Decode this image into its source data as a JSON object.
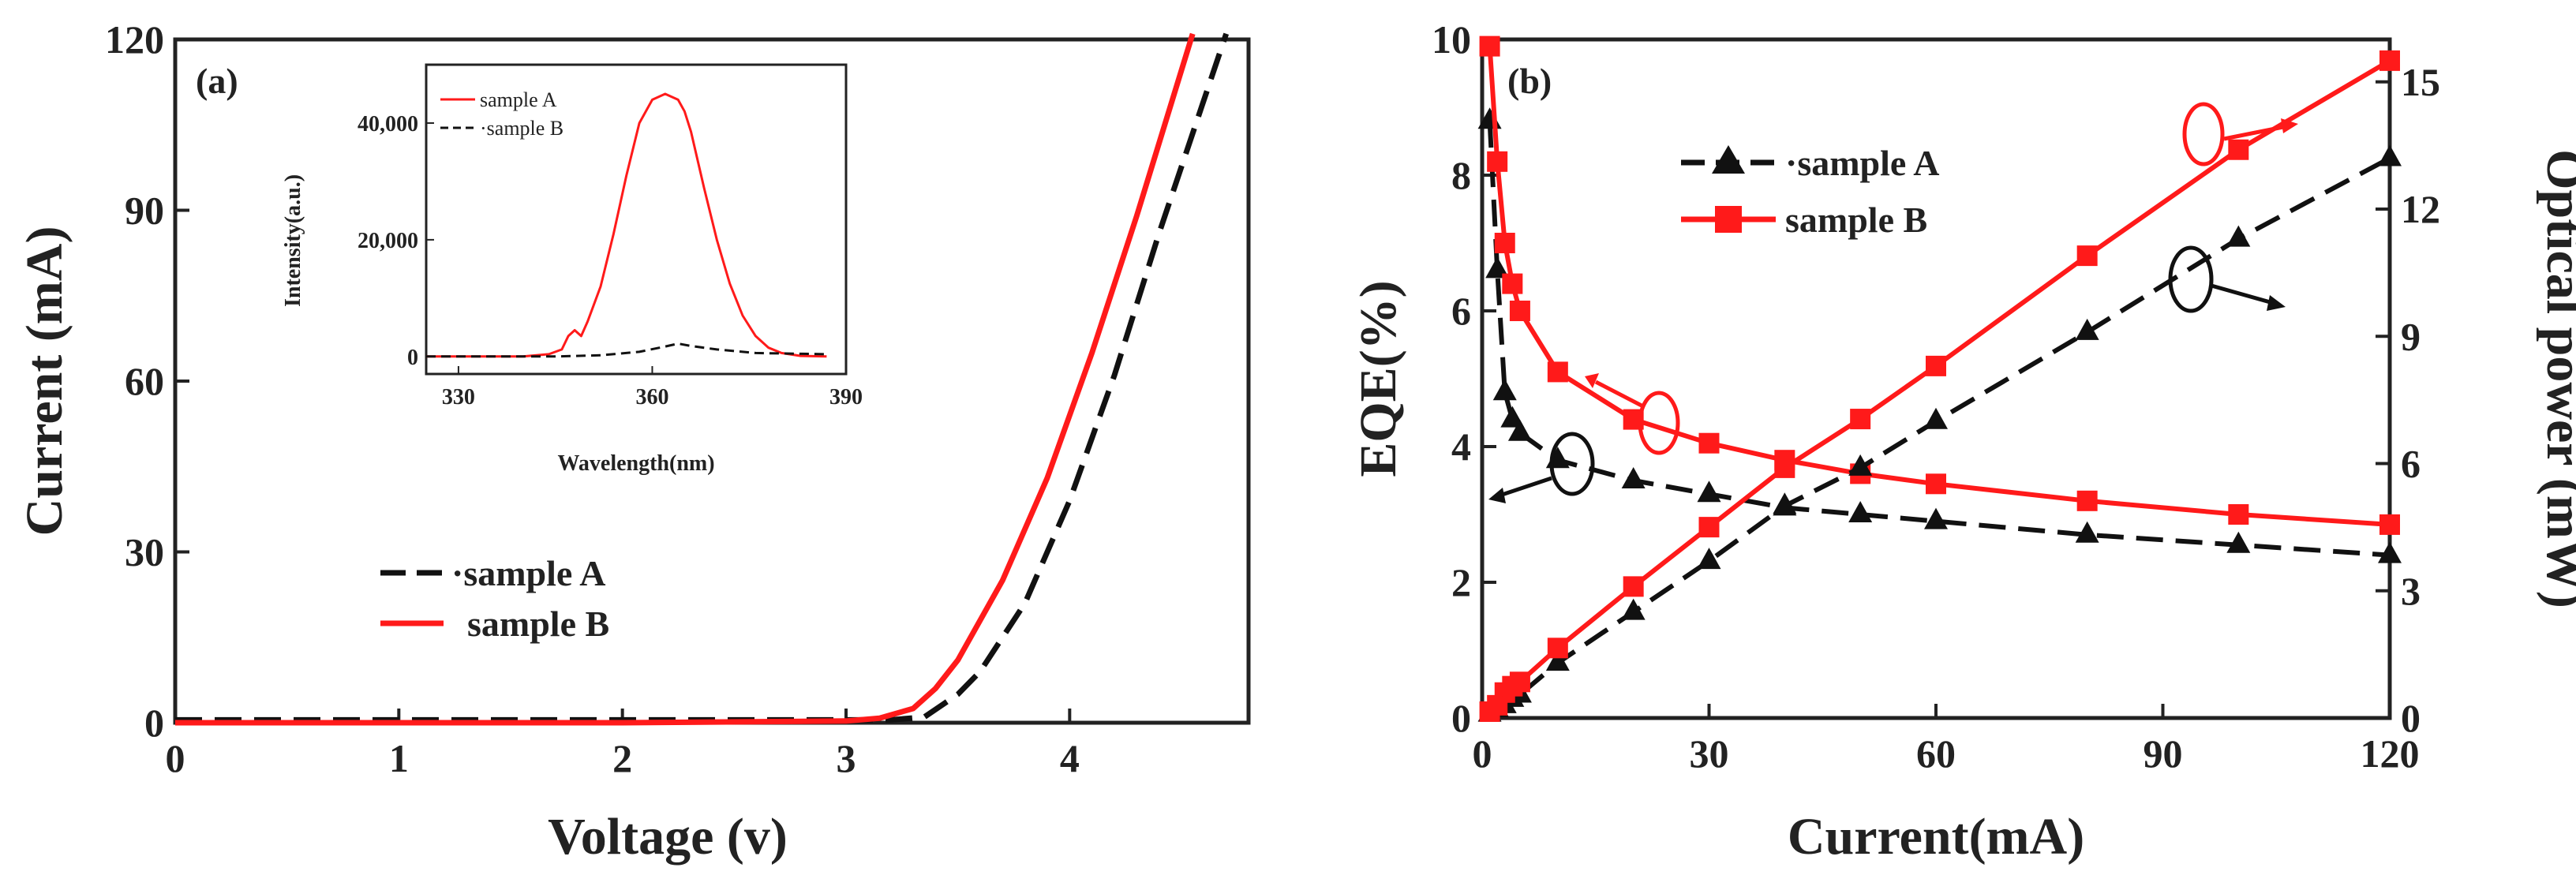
{
  "colors": {
    "sampleA": "#111111",
    "sampleB": "#ff1a1a",
    "axis": "#222222"
  },
  "chart_data": [
    {
      "panel": "(a)",
      "type": "line",
      "xlabel": "Voltage (v)",
      "ylabel": "Current (mA)",
      "xlim": [
        0,
        4.8
      ],
      "ylim": [
        0,
        120
      ],
      "xticks": [
        "0",
        "1",
        "2",
        "3",
        "4"
      ],
      "yticks": [
        "0",
        "30",
        "60",
        "90",
        "120"
      ],
      "legend_position": "lower-left",
      "series": [
        {
          "name": "sample A",
          "legend_label": "·sample A",
          "style": "dashed",
          "x": [
            0,
            1,
            2,
            3,
            3.2,
            3.35,
            3.5,
            3.6,
            3.8,
            4.0,
            4.2,
            4.4,
            4.7
          ],
          "y": [
            0.5,
            0.5,
            0.5,
            0.5,
            0.5,
            1,
            5,
            9,
            21,
            39,
            61,
            86,
            121
          ]
        },
        {
          "name": "sample B",
          "legend_label": "sample B",
          "style": "solid",
          "x": [
            0,
            1,
            2,
            3,
            3.15,
            3.3,
            3.4,
            3.5,
            3.7,
            3.9,
            4.1,
            4.3,
            4.55
          ],
          "y": [
            0,
            0,
            0,
            0.3,
            0.8,
            2.5,
            6,
            11,
            25,
            43,
            65,
            89,
            121
          ]
        }
      ],
      "inset": {
        "xlabel": "Wavelength(nm)",
        "ylabel": "Intensity(a.u.)",
        "xlim": [
          325,
          390
        ],
        "ylim": [
          -3000,
          50000
        ],
        "xticks": [
          "330",
          "360",
          "390"
        ],
        "yticks": [
          "0",
          "20,000",
          "40,000"
        ],
        "series": [
          {
            "name": "sample A",
            "legend_label": "sample A",
            "style": "solid-red",
            "x": [
              325,
              340,
              344,
              346,
              347,
              348,
              349,
              350,
              352,
              354,
              356,
              358,
              360,
              362,
              364,
              365,
              366,
              368,
              370,
              372,
              374,
              376,
              378,
              380,
              383,
              387
            ],
            "y": [
              0,
              0,
              400,
              1200,
              3500,
              4500,
              3500,
              6000,
              12000,
              21000,
              31000,
              40000,
              44000,
              45000,
              44000,
              42000,
              38500,
              29000,
              20000,
              12500,
              7000,
              3500,
              1500,
              600,
              100,
              0
            ]
          },
          {
            "name": "sample B",
            "legend_label": "·sample B",
            "style": "dashed-black",
            "x": [
              325,
              345,
              352,
              358,
              362,
              364,
              366,
              370,
              376,
              387
            ],
            "y": [
              0,
              0,
              200,
              800,
              1700,
              2200,
              1800,
              1200,
              600,
              400
            ]
          }
        ]
      }
    },
    {
      "panel": "(b)",
      "type": "line",
      "xlabel": "Current(mA)",
      "ylabel": "EQE(%)",
      "ylabel_right": "Optical power (mW)",
      "xlim": [
        0,
        120
      ],
      "ylim": [
        0,
        10
      ],
      "ylim_right": [
        0,
        16
      ],
      "xticks": [
        "0",
        "30",
        "60",
        "90",
        "120"
      ],
      "yticks": [
        "0",
        "2",
        "4",
        "6",
        "8",
        "10"
      ],
      "yticks_right": [
        "0",
        "3",
        "6",
        "9",
        "12",
        "15"
      ],
      "legend_position": "upper-left",
      "series": [
        {
          "name": "sample A EQE",
          "legend_label": "·sample A",
          "axis": "left",
          "marker": "triangle",
          "style": "dashed",
          "x": [
            1,
            2,
            3,
            4,
            5,
            10,
            20,
            30,
            40,
            50,
            60,
            80,
            100,
            120
          ],
          "y": [
            8.8,
            6.6,
            4.8,
            4.4,
            4.2,
            3.8,
            3.5,
            3.3,
            3.1,
            3.0,
            2.9,
            2.7,
            2.55,
            2.4
          ]
        },
        {
          "name": "sample B EQE",
          "legend_label": "sample B",
          "axis": "left",
          "marker": "square",
          "style": "solid",
          "x": [
            1,
            2,
            3,
            4,
            5,
            10,
            20,
            30,
            40,
            50,
            60,
            80,
            100,
            120
          ],
          "y": [
            9.9,
            8.2,
            7.0,
            6.4,
            6.0,
            5.1,
            4.4,
            4.05,
            3.8,
            3.6,
            3.45,
            3.2,
            3.0,
            2.85
          ]
        },
        {
          "name": "sample A optical power",
          "axis": "right",
          "marker": "triangle",
          "style": "dashed",
          "x": [
            1,
            2,
            3,
            4,
            5,
            10,
            20,
            30,
            40,
            50,
            60,
            80,
            100,
            120
          ],
          "y": [
            0.1,
            0.2,
            0.3,
            0.45,
            0.55,
            1.3,
            2.5,
            3.7,
            5.0,
            5.9,
            7.0,
            9.1,
            11.3,
            13.2
          ]
        },
        {
          "name": "sample B optical power",
          "axis": "right",
          "marker": "square",
          "style": "solid",
          "x": [
            1,
            2,
            3,
            4,
            5,
            10,
            20,
            30,
            40,
            50,
            60,
            80,
            100,
            120
          ],
          "y": [
            0.15,
            0.3,
            0.6,
            0.75,
            0.85,
            1.65,
            3.1,
            4.5,
            5.9,
            7.05,
            8.3,
            10.9,
            13.4,
            15.5
          ]
        }
      ],
      "annotations": [
        "circle with arrow pointing to right axis near sample B power",
        "circle with arrow pointing to left axis near EQE curves",
        "circle with arrow pointing to right axis near sample A power",
        "circle with arrow pointing to left axis near sample A EQE"
      ]
    }
  ]
}
